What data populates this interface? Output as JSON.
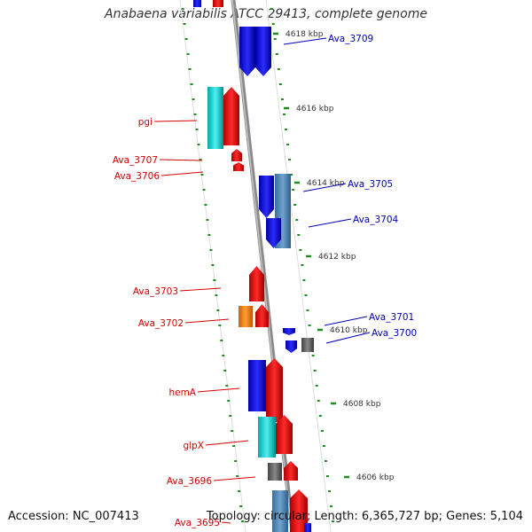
{
  "title": "Anabaena variabilis ATCC 29413, complete genome",
  "footer": {
    "accession": "Accession: NC_007413",
    "summary": "Topology: circular; Length: 6,365,727 bp; Genes: 5,104"
  },
  "colors": {
    "plus_label": "#d40000",
    "minus_label": "#0000b4",
    "tick": "#1e8c1e",
    "backbone": "#8a8a8a"
  },
  "scale_labels": [
    "4618 kbp",
    "4616 kbp",
    "4614 kbp",
    "4612 kbp",
    "4610 kbp",
    "4608 kbp",
    "4606 kbp"
  ],
  "genes_plus": [
    "pgi",
    "Ava_3707",
    "Ava_3706",
    "Ava_3703",
    "Ava_3702",
    "hemA",
    "glpX",
    "Ava_3696",
    "Ava_3695"
  ],
  "genes_minus": [
    "Ava_3709",
    "Ava_3705",
    "Ava_3704",
    "Ava_3701",
    "Ava_3700"
  ]
}
